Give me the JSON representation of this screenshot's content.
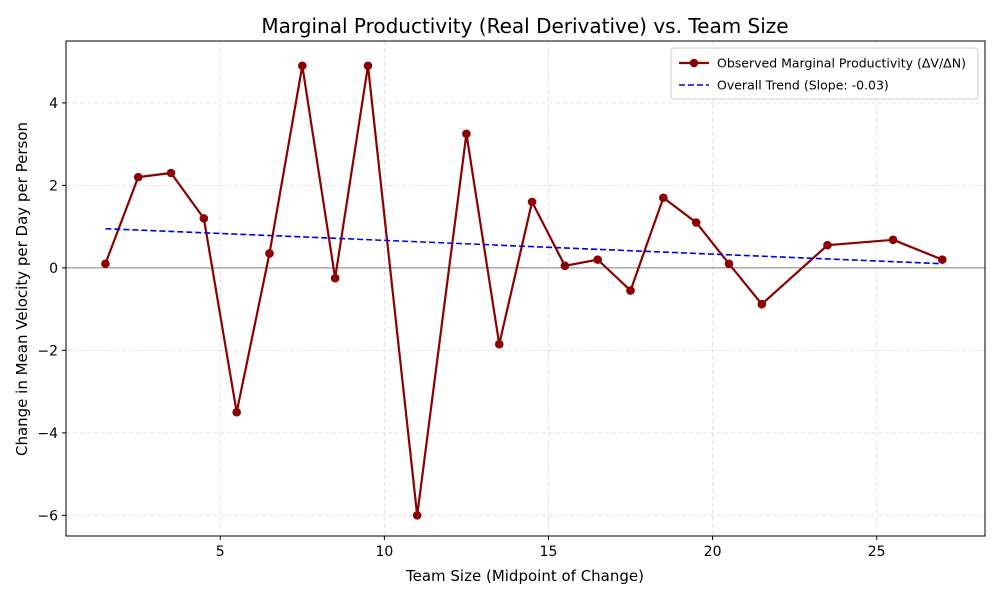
{
  "chart_data": {
    "type": "line",
    "title": "Marginal Productivity (Real Derivative) vs. Team Size",
    "xlabel": "Team Size (Midpoint of Change)",
    "ylabel": "Change in Mean Velocity per Day per Person",
    "xlim": [
      0.3,
      28.3
    ],
    "ylim": [
      -6.5,
      5.5
    ],
    "xticks": [
      5,
      10,
      15,
      20,
      25
    ],
    "yticks": [
      -6,
      -4,
      -2,
      0,
      2,
      4
    ],
    "grid": true,
    "legend_position": "top-right",
    "series": [
      {
        "name": "Observed Marginal Productivity (ΔV/ΔN)",
        "style": "solid-with-markers",
        "color": "#8b0000",
        "x": [
          1.5,
          2.5,
          3.5,
          4.5,
          5.5,
          6.5,
          7.5,
          8.5,
          9.5,
          11,
          12.5,
          13.5,
          14.5,
          15.5,
          16.5,
          17.5,
          18.5,
          19.5,
          20.5,
          21.5,
          23.5,
          25.5,
          27
        ],
        "y": [
          0.1,
          2.2,
          2.3,
          1.2,
          -3.5,
          0.35,
          4.9,
          -0.25,
          4.9,
          -6.0,
          3.25,
          -1.85,
          1.6,
          0.05,
          0.2,
          -0.55,
          1.7,
          1.1,
          0.1,
          -0.88,
          0.55,
          0.68,
          0.2
        ]
      },
      {
        "name": "Overall Trend (Slope: -0.03)",
        "style": "dashed",
        "color": "#0000ee",
        "x": [
          1.5,
          27
        ],
        "y": [
          0.95,
          0.1
        ]
      }
    ],
    "reference_line": {
      "y": 0,
      "color": "#808080"
    }
  }
}
